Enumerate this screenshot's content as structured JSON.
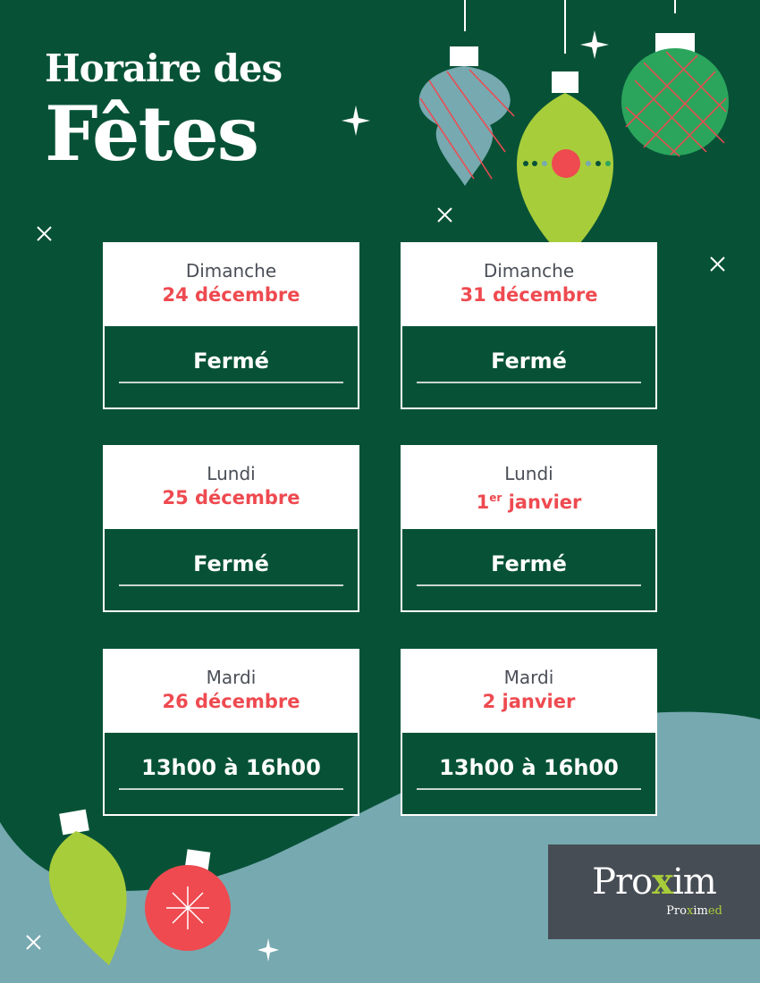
{
  "header": {
    "line1": "Horaire des",
    "line2": "Fêtes"
  },
  "cards": [
    {
      "day": "Dimanche",
      "date": "24 décembre",
      "hours": "Fermé"
    },
    {
      "day": "Dimanche",
      "date": "31 décembre",
      "hours": "Fermé"
    },
    {
      "day": "Lundi",
      "date": "25 décembre",
      "hours": "Fermé"
    },
    {
      "day": "Lundi",
      "date_num": "1",
      "date_sup": "er",
      "date_rest": " janvier",
      "hours": "Fermé"
    },
    {
      "day": "Mardi",
      "date": "26 décembre",
      "hours": "13h00 à 16h00"
    },
    {
      "day": "Mardi",
      "date": "2 janvier",
      "hours": "13h00 à 16h00"
    }
  ],
  "logo": {
    "main_a": "Pro",
    "main_x": "x",
    "main_b": "im",
    "sub_a": "Pro",
    "sub_x": "x",
    "sub_b": "im",
    "sub_c": "ed"
  },
  "colors": {
    "background": "#075237",
    "wave": "#77a9b0",
    "accent_red": "#ee4a50",
    "lime": "#a8cd3a",
    "logo_bg": "#474d55"
  }
}
